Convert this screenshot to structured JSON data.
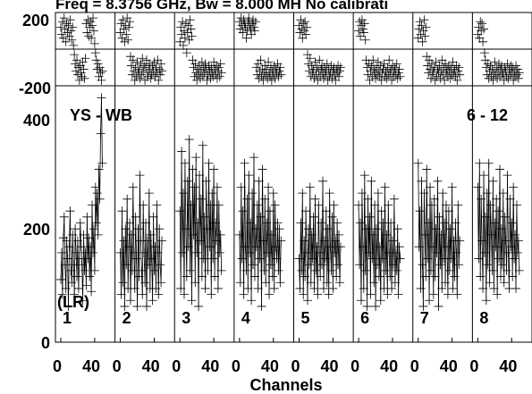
{
  "chart_data": {
    "type": "line",
    "title": "Freq = 8.3756 GHz, Bw = 8.000 MH   No calibrati",
    "xlabel": "Channels",
    "baseline_label": "YS - WB",
    "time_label": "6 - 12",
    "polarization": "(LR)",
    "phase_panel": {
      "yticks": [
        "200",
        "-200"
      ],
      "ylim": [
        -200,
        200
      ]
    },
    "amp_panel": {
      "yticks": [
        "400",
        "200",
        "0"
      ],
      "ylim": [
        0,
        430
      ]
    },
    "xticks": [
      "0",
      "40"
    ],
    "xlim": [
      0,
      64
    ],
    "panels": [
      {
        "label": "1",
        "amp": [
          105,
          150,
          80,
          175,
          210,
          130,
          90,
          170,
          140,
          60,
          160,
          220,
          120,
          100,
          180,
          130,
          80,
          190,
          150,
          110,
          170,
          90,
          140,
          200,
          160,
          130,
          70,
          180,
          120,
          150,
          95,
          210,
          140,
          175,
          110,
          160,
          85,
          230,
          150,
          190,
          120,
          260,
          200,
          250,
          180,
          290,
          240,
          350,
          410,
          300
        ],
        "phase": [
          120,
          80,
          150,
          60,
          170,
          110,
          40,
          140,
          90,
          130,
          70,
          160,
          100,
          50,
          120,
          20,
          -30,
          -80,
          -120,
          -60,
          -140,
          -100,
          -170,
          -90,
          -130,
          -150,
          -70,
          -110,
          -160,
          -50,
          140,
          90,
          160,
          70,
          120,
          150,
          60,
          130,
          170,
          100,
          30,
          -20,
          -60,
          -110,
          -80,
          -150,
          -100,
          -130,
          -170,
          -120
        ]
      },
      {
        "label": "2",
        "amp": [
          150,
          80,
          220,
          100,
          170,
          60,
          190,
          130,
          240,
          90,
          160,
          200,
          70,
          180,
          120,
          260,
          150,
          90,
          210,
          140,
          60,
          190,
          110,
          280,
          170,
          120,
          80,
          230,
          150,
          100,
          200,
          60,
          170,
          130,
          250,
          90,
          180,
          140,
          70,
          210,
          120,
          160,
          90,
          230,
          150,
          80,
          190,
          130,
          100,
          170
        ],
        "phase": [
          90,
          140,
          60,
          160,
          110,
          40,
          130,
          80,
          170,
          50,
          120,
          150,
          -40,
          -90,
          -140,
          -60,
          -120,
          -170,
          -100,
          -150,
          -70,
          -130,
          -110,
          -160,
          -80,
          -140,
          -50,
          -120,
          -90,
          -170,
          -100,
          -60,
          -150,
          -130,
          -80,
          -110,
          -160,
          -140,
          -90,
          -120,
          -70,
          -150,
          -100,
          -130,
          -60,
          -170,
          -110,
          -140,
          -80,
          -120
        ]
      },
      {
        "label": "3",
        "amp": [
          220,
          90,
          320,
          150,
          250,
          80,
          300,
          190,
          110,
          270,
          160,
          340,
          120,
          230,
          70,
          290,
          180,
          260,
          100,
          310,
          150,
          200,
          60,
          280,
          170,
          240,
          110,
          330,
          140,
          210,
          90,
          270,
          190,
          120,
          300,
          160,
          230,
          80,
          250,
          140,
          290,
          110,
          200,
          170,
          260,
          90,
          230,
          150,
          180,
          120
        ],
        "phase": [
          40,
          120,
          80,
          150,
          20,
          100,
          60,
          140,
          -20,
          90,
          130,
          50,
          160,
          110,
          70,
          -60,
          -100,
          -150,
          -80,
          -130,
          -170,
          -110,
          -140,
          -90,
          -160,
          -120,
          -70,
          -150,
          -100,
          -130,
          -80,
          -110,
          -170,
          -140,
          -90,
          -120,
          -160,
          -100,
          -130,
          -150,
          -70,
          -110,
          -140,
          -90,
          -160,
          -120,
          -100,
          -150,
          -80,
          -130
        ]
      },
      {
        "label": "4",
        "amp": [
          180,
          100,
          260,
          140,
          220,
          80,
          300,
          160,
          120,
          240,
          90,
          280,
          150,
          200,
          70,
          250,
          130,
          310,
          110,
          190,
          160,
          230,
          90,
          270,
          140,
          210,
          60,
          290,
          170,
          120,
          240,
          100,
          200,
          150,
          260,
          80,
          220,
          130,
          180,
          110,
          250,
          90,
          230,
          160,
          140,
          200,
          120,
          190,
          100,
          170
        ],
        "phase": [
          150,
          110,
          170,
          130,
          90,
          160,
          140,
          120,
          60,
          100,
          150,
          170,
          130,
          110,
          80,
          140,
          160,
          120,
          100,
          150,
          -100,
          -140,
          -80,
          -160,
          -120,
          -60,
          -150,
          -110,
          -170,
          -130,
          -90,
          -140,
          -110,
          -160,
          -70,
          -130,
          -150,
          -100,
          -170,
          -120,
          -140,
          -90,
          -160,
          -110,
          -130,
          -80,
          -150,
          -120,
          -100,
          -140
        ]
      },
      {
        "label": "5",
        "amp": [
          140,
          90,
          200,
          120,
          250,
          80,
          170,
          110,
          220,
          150,
          70,
          190,
          130,
          260,
          100,
          180,
          140,
          210,
          90,
          240,
          120,
          160,
          80,
          230,
          150,
          110,
          200,
          130,
          270,
          90,
          170,
          140,
          220,
          100,
          190,
          80,
          250,
          160,
          120,
          210,
          90,
          230,
          150,
          170,
          110,
          200,
          130,
          180,
          100,
          160
        ],
        "phase": [
          130,
          90,
          160,
          110,
          60,
          140,
          100,
          150,
          80,
          120,
          -30,
          -80,
          -120,
          -50,
          -150,
          -90,
          -130,
          -110,
          -160,
          -70,
          -140,
          -100,
          -170,
          -120,
          -60,
          -150,
          -110,
          -90,
          -130,
          -160,
          -100,
          -140,
          -120,
          -80,
          -170,
          -110,
          -150,
          -130,
          -90,
          -160,
          -120,
          -100,
          -140,
          -170,
          -110,
          -130,
          -90,
          -150,
          -120,
          -100
        ]
      },
      {
        "label": "6",
        "amp": [
          230,
          130,
          200,
          70,
          250,
          160,
          90,
          280,
          120,
          190,
          60,
          240,
          150,
          210,
          80,
          270,
          140,
          180,
          100,
          230,
          60,
          190,
          130,
          250,
          110,
          160,
          70,
          220,
          140,
          200,
          90,
          260,
          120,
          180,
          80,
          230,
          150,
          110,
          200,
          90,
          170,
          130,
          240,
          100,
          150,
          120,
          190,
          80,
          160,
          140
        ],
        "phase": [
          100,
          150,
          70,
          130,
          160,
          110,
          90,
          140,
          50,
          -60,
          -100,
          -140,
          -80,
          -170,
          -120,
          -90,
          -150,
          -60,
          -110,
          -130,
          -160,
          -100,
          -140,
          -70,
          -120,
          -150,
          -90,
          -170,
          -130,
          -110,
          -80,
          -150,
          -120,
          -160,
          -100,
          -140,
          -60,
          -130,
          -110,
          -170,
          -90,
          -150,
          -120,
          -100,
          -140,
          -80,
          -160,
          -130,
          -110,
          -150
        ]
      },
      {
        "label": "7",
        "amp": [
          300,
          160,
          220,
          90,
          270,
          130,
          60,
          250,
          180,
          110,
          290,
          140,
          200,
          70,
          260,
          120,
          230,
          160,
          80,
          240,
          110,
          190,
          150,
          270,
          60,
          210,
          130,
          180,
          90,
          250,
          140,
          200,
          100,
          230,
          160,
          80,
          220,
          120,
          190,
          140,
          260,
          90,
          170,
          110,
          200,
          150,
          80,
          230,
          130,
          170
        ],
        "phase": [
          60,
          110,
          150,
          80,
          130,
          40,
          100,
          160,
          70,
          120,
          -40,
          -90,
          -130,
          -60,
          -110,
          -160,
          -80,
          -140,
          -120,
          -100,
          -170,
          -70,
          -150,
          -110,
          -130,
          -90,
          -160,
          -120,
          -60,
          -140,
          -100,
          -170,
          -80,
          -130,
          -110,
          -150,
          -90,
          -120,
          -160,
          -100,
          -140,
          -70,
          -130,
          -110,
          -150,
          -90,
          -170,
          -120,
          -100,
          -140
        ]
      },
      {
        "label": "8",
        "amp": [
          260,
          140,
          300,
          110,
          240,
          170,
          90,
          280,
          150,
          210,
          70,
          250,
          130,
          300,
          100,
          230,
          180,
          120,
          270,
          90,
          200,
          160,
          240,
          80,
          220,
          140,
          290,
          110,
          190,
          130,
          250,
          100,
          210,
          170,
          120,
          280,
          150,
          90,
          240,
          160,
          200,
          110,
          260,
          140,
          180,
          90,
          230,
          150,
          170,
          120
        ],
        "phase": [
          80,
          120,
          60,
          150,
          100,
          140,
          40,
          110,
          -20,
          -60,
          -100,
          -140,
          -80,
          -160,
          -120,
          -90,
          -150,
          -110,
          -170,
          -130,
          -70,
          -140,
          -100,
          -160,
          -120,
          -80,
          -150,
          -110,
          -90,
          -140,
          -130,
          -170,
          -100,
          -120,
          -150,
          -80,
          -160,
          -110,
          -140,
          -90,
          -130,
          -100,
          -170,
          -120,
          -150,
          -90,
          -140,
          -110,
          -160,
          -130
        ]
      }
    ]
  }
}
